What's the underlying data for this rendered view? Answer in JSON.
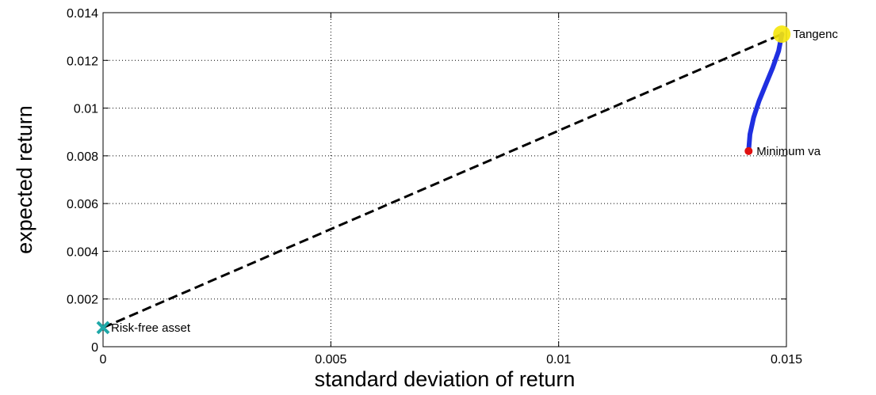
{
  "chart_data": {
    "type": "scatter",
    "xlabel": "standard deviation of return",
    "ylabel": "expected return",
    "xlim": [
      0,
      0.015
    ],
    "ylim": [
      0,
      0.014
    ],
    "grid": true,
    "x_ticks": [
      0,
      0.005,
      0.01,
      0.015
    ],
    "x_tick_labels": [
      "0",
      "0.005",
      "0.01",
      "0.015"
    ],
    "y_ticks": [
      0,
      0.002,
      0.004,
      0.006,
      0.008,
      0.01,
      0.012,
      0.014
    ],
    "y_tick_labels": [
      "0",
      "0.002",
      "0.004",
      "0.006",
      "0.008",
      "0.01",
      "0.012",
      "0.014"
    ],
    "series": [
      {
        "type": "line",
        "style": "dashed",
        "color": "#000000",
        "x": [
          0,
          0.0149
        ],
        "y": [
          0.0008,
          0.0131
        ]
      },
      {
        "type": "line",
        "style": "solid",
        "color": "#1f2fe0",
        "x": [
          0.01417,
          0.0142,
          0.01428,
          0.0144,
          0.01455,
          0.0147,
          0.01483,
          0.0149
        ],
        "y": [
          0.0082,
          0.0089,
          0.0096,
          0.0103,
          0.011,
          0.0117,
          0.0124,
          0.0131
        ]
      }
    ],
    "points": [
      {
        "label": "Risk-free asset",
        "x": 0,
        "y": 0.0008,
        "marker": "x",
        "color": "#1fa8a8"
      },
      {
        "label": "Minimum va",
        "x": 0.01417,
        "y": 0.0082,
        "marker": "dot",
        "color": "#e01010"
      },
      {
        "label": "Tangenc",
        "x": 0.0149,
        "y": 0.0131,
        "marker": "star",
        "color": "#f5e60a"
      }
    ]
  }
}
